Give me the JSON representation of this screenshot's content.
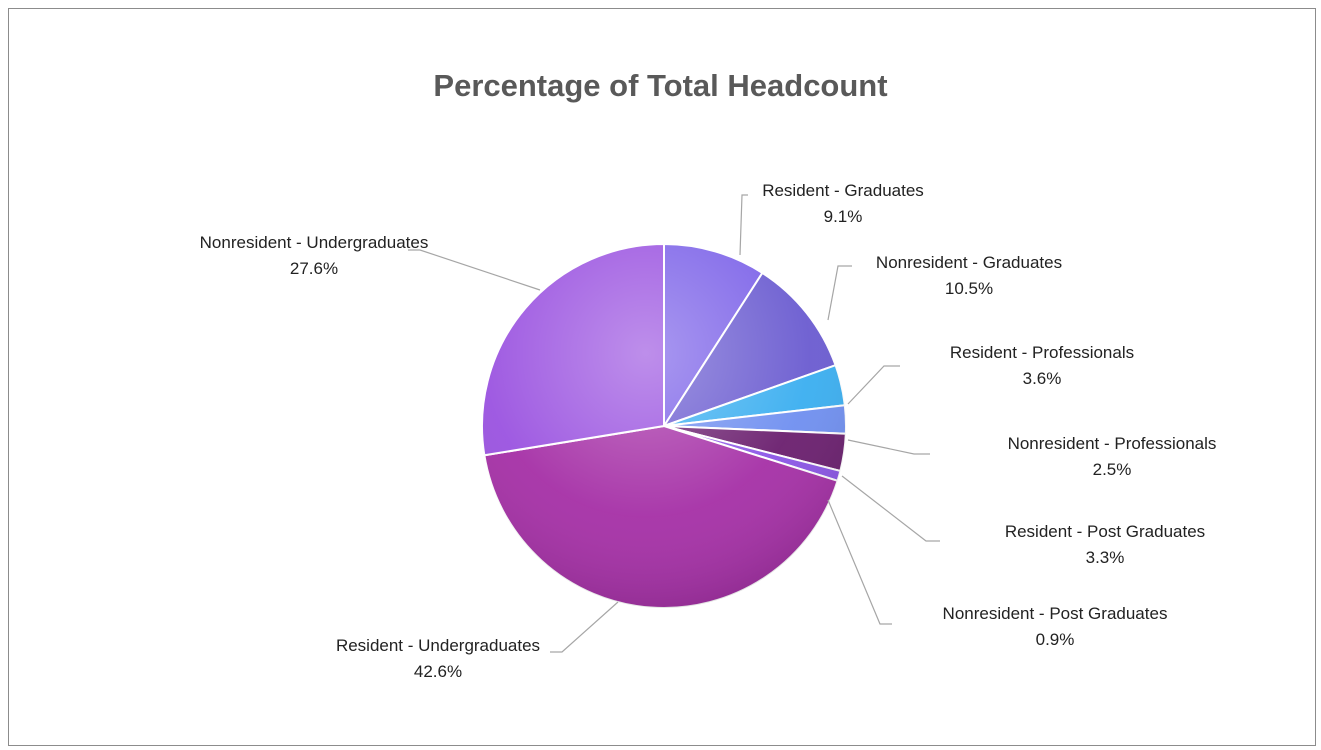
{
  "chart_data": {
    "type": "pie",
    "title": "Percentage of Total Headcount",
    "slices": [
      {
        "name": "Resident - Graduates",
        "value": 9.1,
        "label": "9.1%",
        "color": "#7b61e8"
      },
      {
        "name": "Nonresident - Graduates",
        "value": 10.5,
        "label": "10.5%",
        "color": "#6a5bd0"
      },
      {
        "name": "Resident - Professionals",
        "value": 3.6,
        "label": "3.6%",
        "color": "#3aaef0"
      },
      {
        "name": "Nonresident - Professionals",
        "value": 2.5,
        "label": "2.5%",
        "color": "#6f8ff0"
      },
      {
        "name": "Resident - Post Graduates",
        "value": 3.3,
        "label": "3.3%",
        "color": "#6a1e6e"
      },
      {
        "name": "Nonresident - Post Graduates",
        "value": 0.9,
        "label": "0.9%",
        "color": "#8b55e6"
      },
      {
        "name": "Resident - Undergraduates",
        "value": 42.6,
        "label": "42.6%",
        "color": "#a52fa6"
      },
      {
        "name": "Nonresident - Undergraduates",
        "value": 27.6,
        "label": "27.6%",
        "color": "#9a52e0"
      }
    ],
    "start_angle_deg": 0,
    "direction": "clockwise",
    "legend": "none"
  }
}
